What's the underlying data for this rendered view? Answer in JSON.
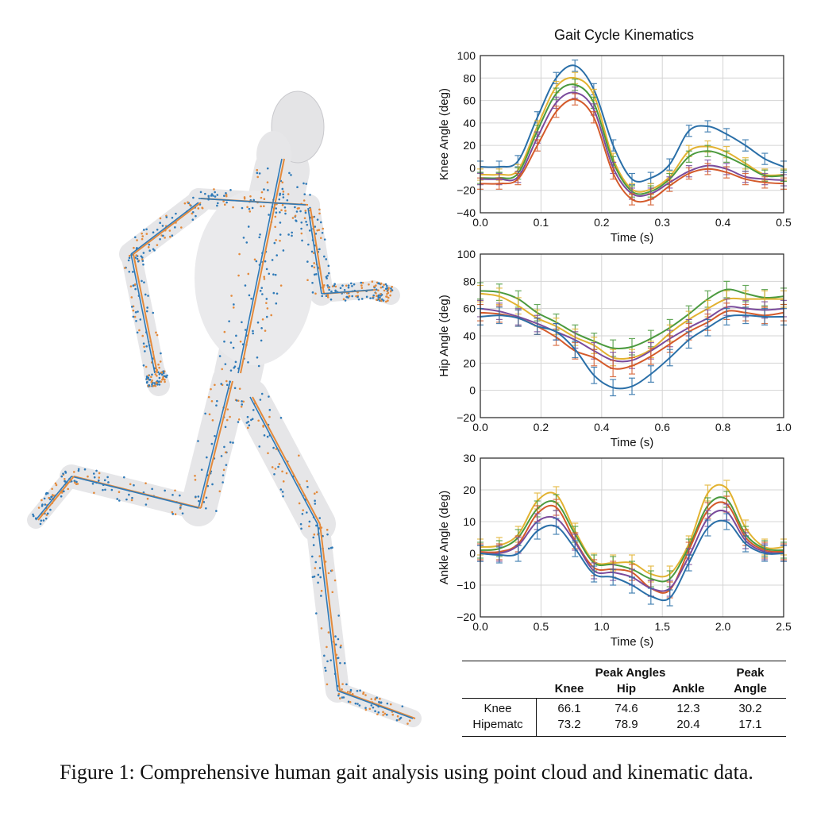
{
  "figure": {
    "caption": "Figure 1: Comprehensive human gait analysis using point cloud and kinematic data."
  },
  "colors": {
    "blue": "#2a6fa8",
    "orange": "#e0792c",
    "yellow": "#e2b230",
    "green": "#4b9a3e",
    "purple": "#7a4b9c",
    "red": "#d45a2a",
    "skeleton_blue": "#2f7ab8",
    "skeleton_orange": "#e38a3c"
  },
  "chart_data": [
    {
      "type": "line",
      "title": "Gait Cycle Kinematics",
      "xlabel": "Time (s)",
      "ylabel": "Knee Angle (deg)",
      "xlim": [
        0,
        0.5
      ],
      "ylim": [
        -40,
        100
      ],
      "xticks": [
        "0.0",
        "0.1",
        "0.2",
        "0.3",
        "0.4",
        "0.5"
      ],
      "yticks": [
        "-40",
        "-20",
        "0",
        "20",
        "40",
        "60",
        "80",
        "100"
      ],
      "grid": true,
      "error_bars": 5,
      "x": [
        0,
        0.031,
        0.062,
        0.094,
        0.125,
        0.156,
        0.187,
        0.219,
        0.25,
        0.281,
        0.312,
        0.344,
        0.375,
        0.406,
        0.437,
        0.469,
        0.5
      ],
      "series": [
        {
          "name": "blue",
          "color": "#2a6fa8",
          "values": [
            1,
            1,
            6,
            45,
            80,
            91,
            70,
            20,
            -10,
            -9,
            3,
            33,
            37,
            30,
            20,
            8,
            1
          ]
        },
        {
          "name": "yellow",
          "color": "#e2b230",
          "values": [
            -6,
            -6,
            -2,
            37,
            72,
            80,
            65,
            8,
            -19,
            -19,
            -8,
            15,
            19,
            14,
            4,
            -6,
            -6
          ]
        },
        {
          "name": "green",
          "color": "#4b9a3e",
          "values": [
            -9,
            -9,
            -5,
            33,
            66,
            74,
            58,
            5,
            -21,
            -21,
            -10,
            10,
            15,
            10,
            2,
            -7,
            -7
          ]
        },
        {
          "name": "purple",
          "color": "#7a4b9c",
          "values": [
            -10,
            -10,
            -8,
            27,
            58,
            67,
            52,
            0,
            -23,
            -23,
            -13,
            -3,
            2,
            -1,
            -8,
            -10,
            -11
          ]
        },
        {
          "name": "red",
          "color": "#d45a2a",
          "values": [
            -14,
            -14,
            -10,
            20,
            50,
            61,
            45,
            -5,
            -28,
            -28,
            -16,
            -5,
            -1,
            -4,
            -10,
            -13,
            -14
          ]
        }
      ]
    },
    {
      "type": "line",
      "title": "",
      "xlabel": "Time (s)",
      "ylabel": "Hip Angle (deg)",
      "xlim": [
        0,
        1.0
      ],
      "ylim": [
        -20,
        100
      ],
      "xticks": [
        "0.0",
        "0.2",
        "0.4",
        "0.6",
        "0.8",
        "1.0"
      ],
      "yticks": [
        "-20",
        "0",
        "20",
        "40",
        "60",
        "80",
        "100"
      ],
      "grid": true,
      "error_bars": 6,
      "x": [
        0,
        0.0625,
        0.125,
        0.1875,
        0.25,
        0.3125,
        0.375,
        0.4375,
        0.5,
        0.5625,
        0.625,
        0.6875,
        0.75,
        0.8125,
        0.875,
        0.9375,
        1.0
      ],
      "series": [
        {
          "name": "green",
          "color": "#4b9a3e",
          "values": [
            73,
            72,
            67,
            57,
            50,
            42,
            36,
            31,
            32,
            38,
            46,
            56,
            67,
            74,
            71,
            68,
            69
          ]
        },
        {
          "name": "yellow",
          "color": "#e2b230",
          "values": [
            71,
            69,
            62,
            53,
            47,
            39,
            33,
            24,
            24,
            30,
            42,
            52,
            60,
            67,
            67,
            67,
            67
          ]
        },
        {
          "name": "purple",
          "color": "#7a4b9c",
          "values": [
            60,
            58,
            54,
            49,
            43,
            37,
            29,
            22,
            22,
            29,
            38,
            46,
            53,
            61,
            60,
            59,
            60
          ]
        },
        {
          "name": "red",
          "color": "#d45a2a",
          "values": [
            57,
            56,
            53,
            47,
            39,
            29,
            24,
            16,
            18,
            25,
            34,
            43,
            50,
            58,
            57,
            55,
            57
          ]
        },
        {
          "name": "blue",
          "color": "#2a6fa8",
          "values": [
            54,
            55,
            53,
            47,
            43,
            30,
            11,
            2,
            3,
            12,
            24,
            37,
            46,
            54,
            55,
            54,
            54
          ]
        }
      ]
    },
    {
      "type": "line",
      "title": "",
      "xlabel": "Time (s)",
      "ylabel": "Ankle Angle (deg)",
      "xlim": [
        0,
        2.5
      ],
      "ylim": [
        -20,
        30
      ],
      "xticks": [
        "0.0",
        "0.5",
        "1.0",
        "1.5",
        "2.0",
        "2.5"
      ],
      "yticks": [
        "-20",
        "-10",
        "0",
        "10",
        "20",
        "30"
      ],
      "grid": true,
      "error_bars": 2.5,
      "x": [
        0,
        0.156,
        0.312,
        0.469,
        0.625,
        0.781,
        0.937,
        1.094,
        1.25,
        1.406,
        1.562,
        1.719,
        1.875,
        2.031,
        2.187,
        2.344,
        2.5
      ],
      "series": [
        {
          "name": "yellow",
          "color": "#e2b230",
          "values": [
            2,
            2.5,
            6,
            16.5,
            18.5,
            7,
            -2.5,
            -3,
            -3,
            -6.5,
            -6.5,
            3,
            19,
            20.5,
            8,
            2,
            2
          ]
        },
        {
          "name": "green",
          "color": "#4b9a3e",
          "values": [
            1,
            1.5,
            5,
            14,
            16,
            6,
            -3,
            -3.5,
            -5,
            -8,
            -8,
            2,
            15,
            17,
            6,
            1.5,
            1
          ]
        },
        {
          "name": "red",
          "color": "#d45a2a",
          "values": [
            0.5,
            0.5,
            3,
            12.5,
            14.5,
            4,
            -4.5,
            -5,
            -6,
            -11,
            -11.5,
            1,
            13.5,
            15.5,
            5,
            1,
            0.5
          ]
        },
        {
          "name": "purple",
          "color": "#7a4b9c",
          "values": [
            0,
            0,
            2.5,
            10,
            11,
            3.5,
            -5.5,
            -6,
            -7.5,
            -11,
            -11,
            -1,
            11,
            13,
            4,
            0.5,
            0
          ]
        },
        {
          "name": "blue",
          "color": "#2a6fa8",
          "values": [
            0,
            -0.5,
            0,
            7,
            8.5,
            1.5,
            -6.5,
            -7.5,
            -10,
            -13.5,
            -14,
            -3,
            8,
            10,
            3,
            0,
            0
          ]
        }
      ]
    }
  ],
  "table": {
    "group_header": "Peak Angles",
    "extra_header_line1": "Peak",
    "columns": [
      "Knee",
      "Hip",
      "Ankle",
      "Angle"
    ],
    "rows": [
      {
        "label": "Knee",
        "values": [
          "66.1",
          "74.6",
          "12.3",
          "30.2"
        ]
      },
      {
        "label": "Hipematc",
        "values": [
          "73.2",
          "78.9",
          "20.4",
          "17.1"
        ]
      }
    ]
  }
}
